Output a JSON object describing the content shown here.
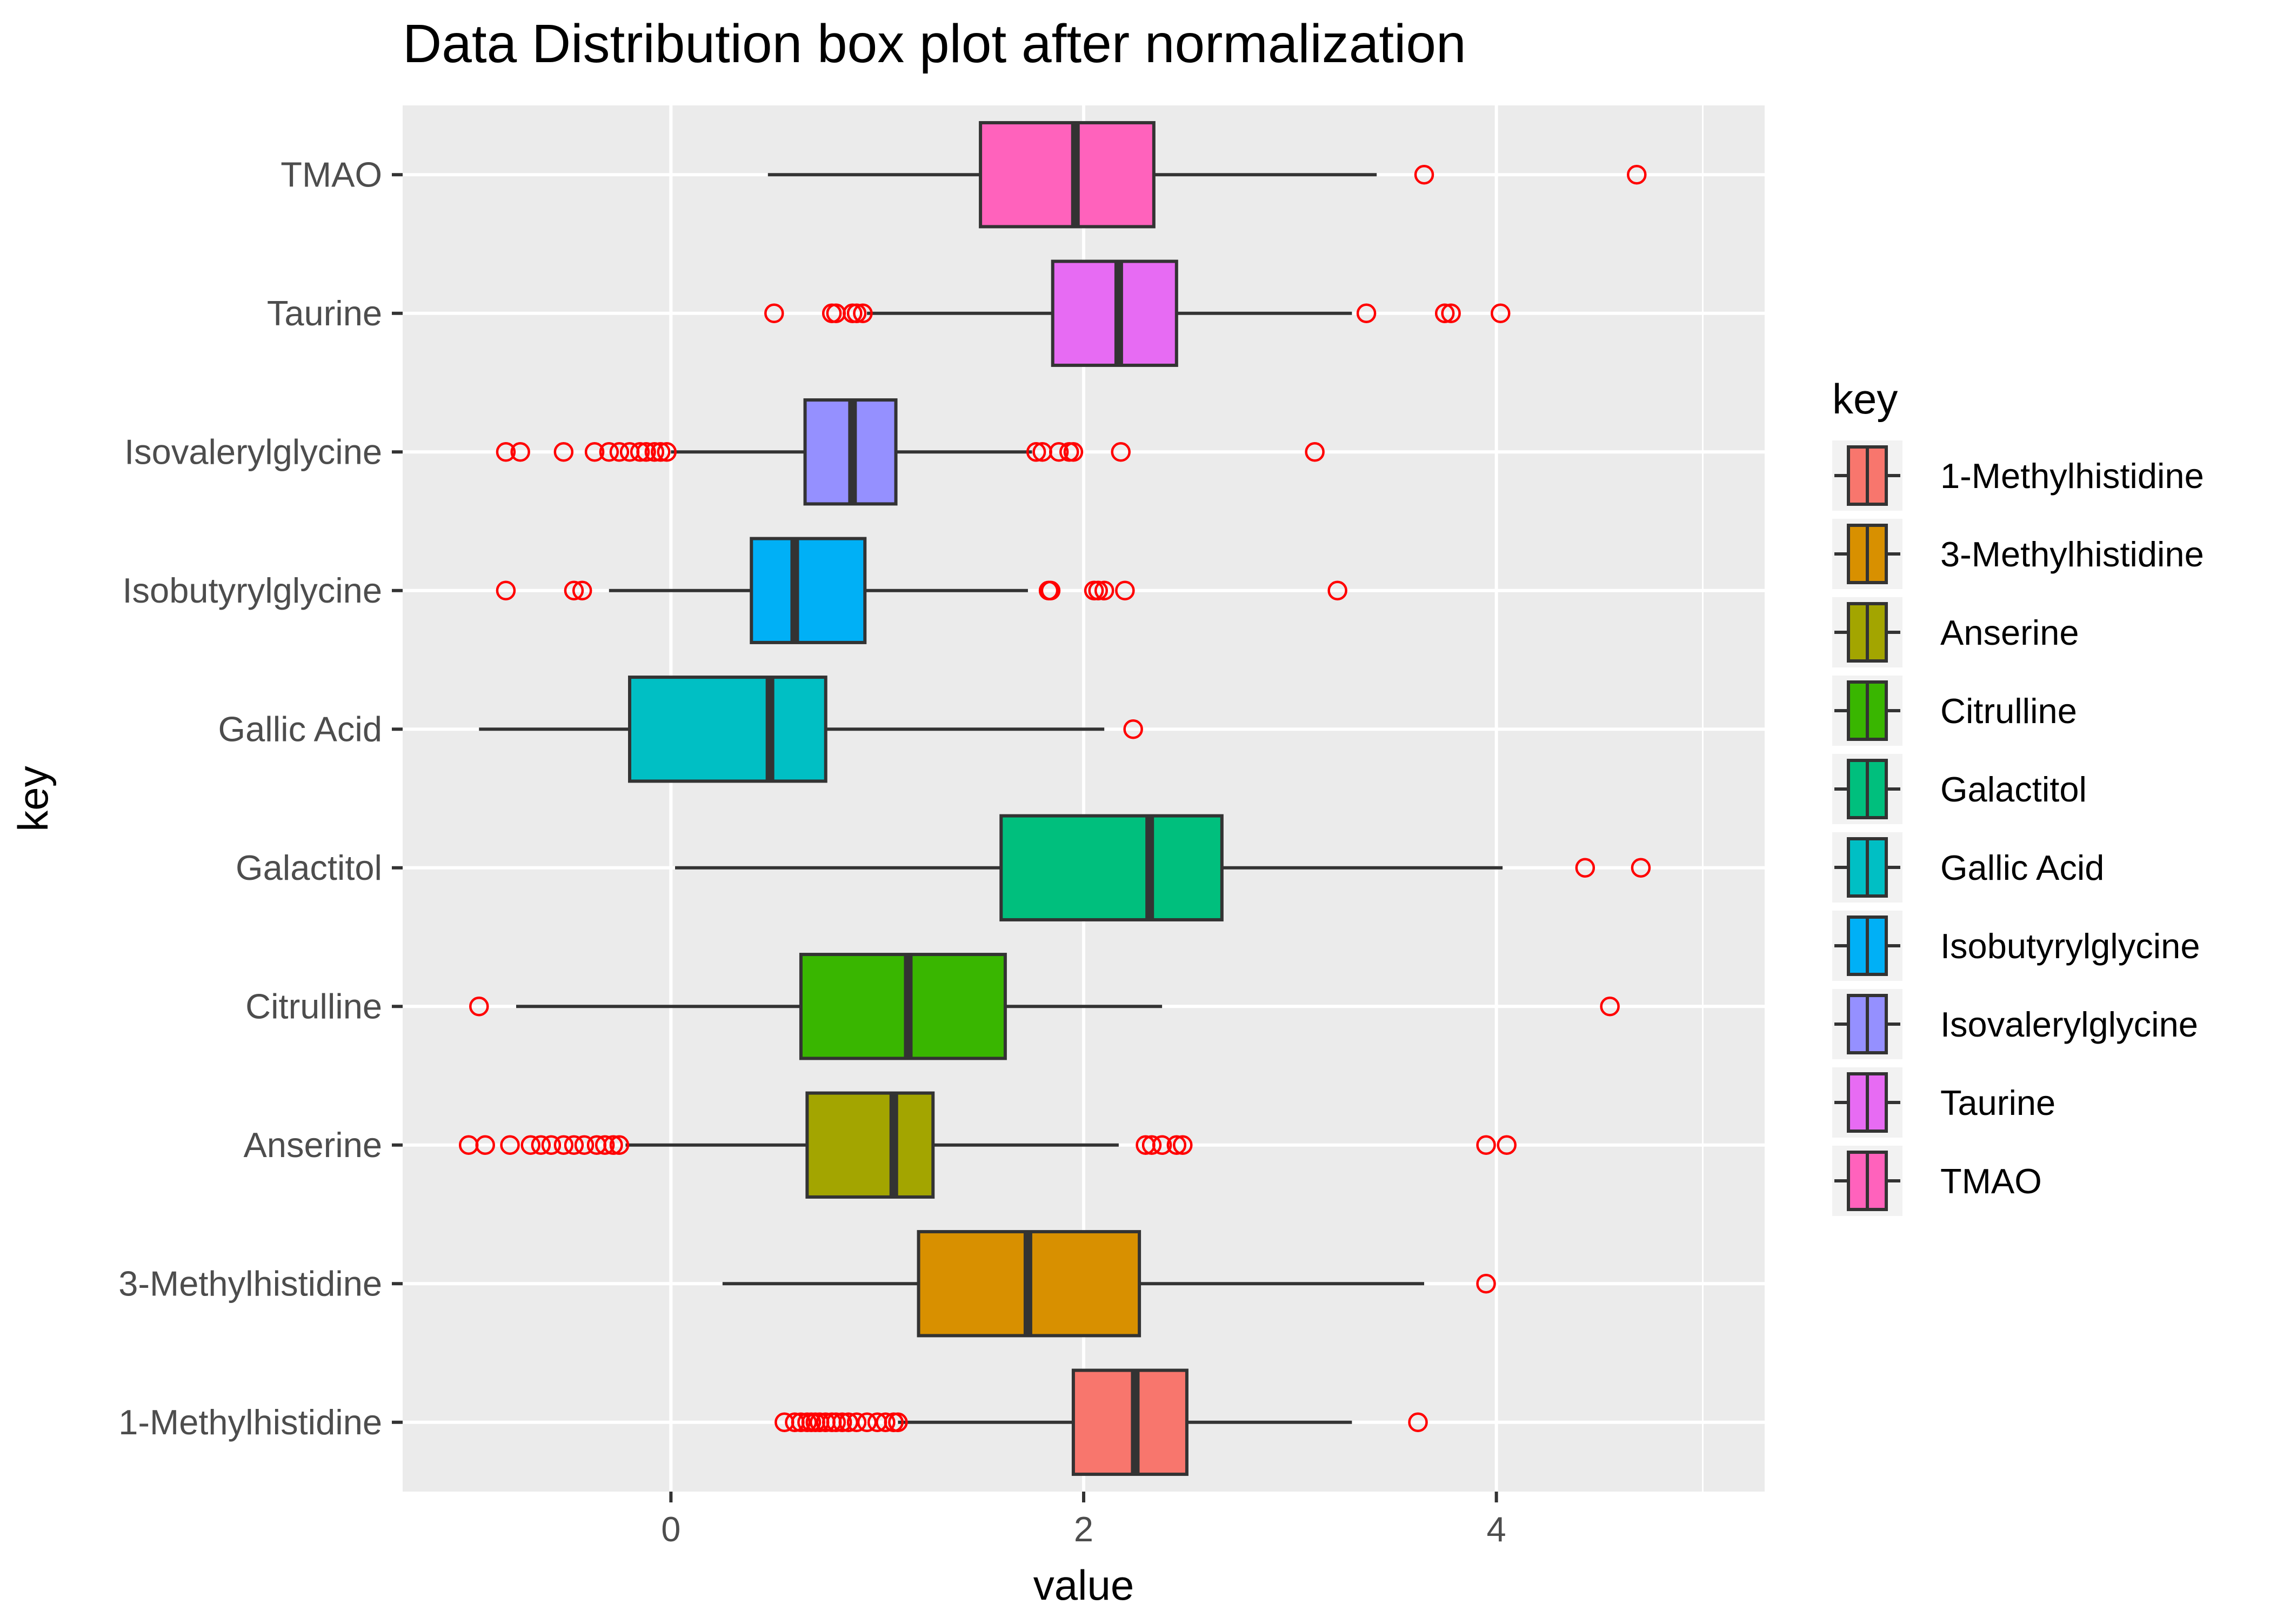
{
  "chart_data": {
    "type": "boxplot",
    "title": "Data Distribution box plot after normalization",
    "xlabel": "value",
    "ylabel": "key",
    "xlim": [
      -1.3,
      5.3
    ],
    "x_ticks": [
      0,
      2,
      4
    ],
    "x_tick_labels": [
      "0",
      "2",
      "4"
    ],
    "grid": true,
    "orientation": "horizontal",
    "legend": {
      "title": "key",
      "placement": "right",
      "items": [
        {
          "label": "1-Methylhistidine",
          "color": "#F8766D"
        },
        {
          "label": "3-Methylhistidine",
          "color": "#D89000"
        },
        {
          "label": "Anserine",
          "color": "#A3A500"
        },
        {
          "label": "Citrulline",
          "color": "#39B600"
        },
        {
          "label": "Galactitol",
          "color": "#00BF7D"
        },
        {
          "label": "Gallic Acid",
          "color": "#00BFC4"
        },
        {
          "label": "Isobutyrylglycine",
          "color": "#00B0F6"
        },
        {
          "label": "Isovalerylglycine",
          "color": "#9590FF"
        },
        {
          "label": "Taurine",
          "color": "#E76BF3"
        },
        {
          "label": "TMAO",
          "color": "#FF62BC"
        }
      ]
    },
    "series": [
      {
        "name": "1-Methylhistidine",
        "color": "#F8766D",
        "min": 1.1,
        "q1": 1.95,
        "median": 2.25,
        "q3": 2.5,
        "max": 3.3,
        "outliers": [
          0.55,
          0.6,
          0.63,
          0.66,
          0.68,
          0.7,
          0.72,
          0.75,
          0.78,
          0.8,
          0.83,
          0.86,
          0.9,
          0.95,
          1.0,
          1.04,
          1.08,
          1.1,
          3.62
        ]
      },
      {
        "name": "3-Methylhistidine",
        "color": "#D89000",
        "min": 0.25,
        "q1": 1.2,
        "median": 1.73,
        "q3": 2.27,
        "max": 3.65,
        "outliers": [
          3.95
        ]
      },
      {
        "name": "Anserine",
        "color": "#A3A500",
        "min": -0.22,
        "q1": 0.66,
        "median": 1.08,
        "q3": 1.27,
        "max": 2.17,
        "outliers": [
          -0.98,
          -0.9,
          -0.78,
          -0.68,
          -0.63,
          -0.58,
          -0.52,
          -0.47,
          -0.42,
          -0.36,
          -0.32,
          -0.28,
          -0.25,
          2.3,
          2.33,
          2.38,
          2.45,
          2.48,
          3.95,
          4.05
        ]
      },
      {
        "name": "Citrulline",
        "color": "#39B600",
        "min": -0.75,
        "q1": 0.63,
        "median": 1.15,
        "q3": 1.62,
        "max": 2.38,
        "outliers": [
          -0.93,
          4.55
        ]
      },
      {
        "name": "Galactitol",
        "color": "#00BF7D",
        "min": 0.02,
        "q1": 1.6,
        "median": 2.32,
        "q3": 2.67,
        "max": 4.03,
        "outliers": [
          4.43,
          4.7
        ]
      },
      {
        "name": "Gallic Acid",
        "color": "#00BFC4",
        "min": -0.93,
        "q1": -0.2,
        "median": 0.48,
        "q3": 0.75,
        "max": 2.1,
        "outliers": [
          2.24
        ]
      },
      {
        "name": "Isobutyrylglycine",
        "color": "#00B0F6",
        "min": -0.3,
        "q1": 0.39,
        "median": 0.6,
        "q3": 0.94,
        "max": 1.73,
        "outliers": [
          -0.8,
          -0.47,
          -0.43,
          1.83,
          1.84,
          2.05,
          2.07,
          2.1,
          2.2,
          3.23
        ]
      },
      {
        "name": "Isovalerylglycine",
        "color": "#9590FF",
        "min": 0.0,
        "q1": 0.65,
        "median": 0.88,
        "q3": 1.09,
        "max": 1.75,
        "outliers": [
          -0.8,
          -0.73,
          -0.52,
          -0.37,
          -0.3,
          -0.25,
          -0.2,
          -0.15,
          -0.12,
          -0.08,
          -0.05,
          -0.02,
          1.77,
          1.8,
          1.88,
          1.93,
          1.95,
          2.18,
          3.12
        ]
      },
      {
        "name": "Taurine",
        "color": "#E76BF3",
        "min": 0.95,
        "q1": 1.85,
        "median": 2.17,
        "q3": 2.45,
        "max": 3.3,
        "outliers": [
          0.5,
          0.78,
          0.8,
          0.88,
          0.9,
          0.93,
          3.37,
          3.75,
          3.78,
          4.02
        ]
      },
      {
        "name": "TMAO",
        "color": "#FF62BC",
        "min": 0.47,
        "q1": 1.5,
        "median": 1.96,
        "q3": 2.34,
        "max": 3.42,
        "outliers": [
          3.65,
          4.68
        ]
      }
    ]
  }
}
